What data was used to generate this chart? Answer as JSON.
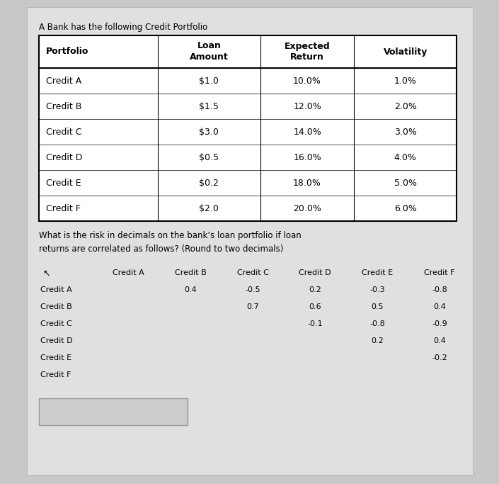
{
  "title": "A Bank has the following Credit Portfolio",
  "table1_headers": [
    "Portfolio",
    "Loan\nAmount",
    "Expected\nReturn",
    "Volatility"
  ],
  "table1_rows": [
    [
      "Credit A",
      "$1.0",
      "10.0%",
      "1.0%"
    ],
    [
      "Credit B",
      "$1.5",
      "12.0%",
      "2.0%"
    ],
    [
      "Credit C",
      "$3.0",
      "14.0%",
      "3.0%"
    ],
    [
      "Credit D",
      "$0.5",
      "16.0%",
      "4.0%"
    ],
    [
      "Credit E",
      "$0.2",
      "18.0%",
      "5.0%"
    ],
    [
      "Credit F",
      "$2.0",
      "20.0%",
      "6.0%"
    ]
  ],
  "question_text": "What is the risk in decimals on the bank’s loan portfolio if loan\nreturns are correlated as follows? (Round to two decimals)",
  "corr_col_headers": [
    "Credit A",
    "Credit B",
    "Credit C",
    "Credit D",
    "Credit E",
    "Credit F"
  ],
  "corr_row_headers": [
    "Credit A",
    "Credit B",
    "Credit C",
    "Credit D",
    "Credit E",
    "Credit F"
  ],
  "corr_data": [
    [
      null,
      "0.4",
      "-0.5",
      "0.2",
      "-0.3",
      "-0.8"
    ],
    [
      null,
      null,
      "0.7",
      "0.6",
      "0.5",
      "0.4"
    ],
    [
      null,
      null,
      null,
      "-0.1",
      "-0.8",
      "-0.9"
    ],
    [
      null,
      null,
      null,
      null,
      "0.2",
      "0.4"
    ],
    [
      null,
      null,
      null,
      null,
      null,
      "-0.2"
    ],
    [
      null,
      null,
      null,
      null,
      null,
      null
    ]
  ],
  "bg_color": "#c8c8c8",
  "panel_color": "#e0e0e0",
  "table_bg": "#ffffff",
  "text_color": "#000000",
  "font_size_title": 8.5,
  "font_size_table": 9,
  "font_size_corr": 8.0,
  "font_size_question": 8.5
}
